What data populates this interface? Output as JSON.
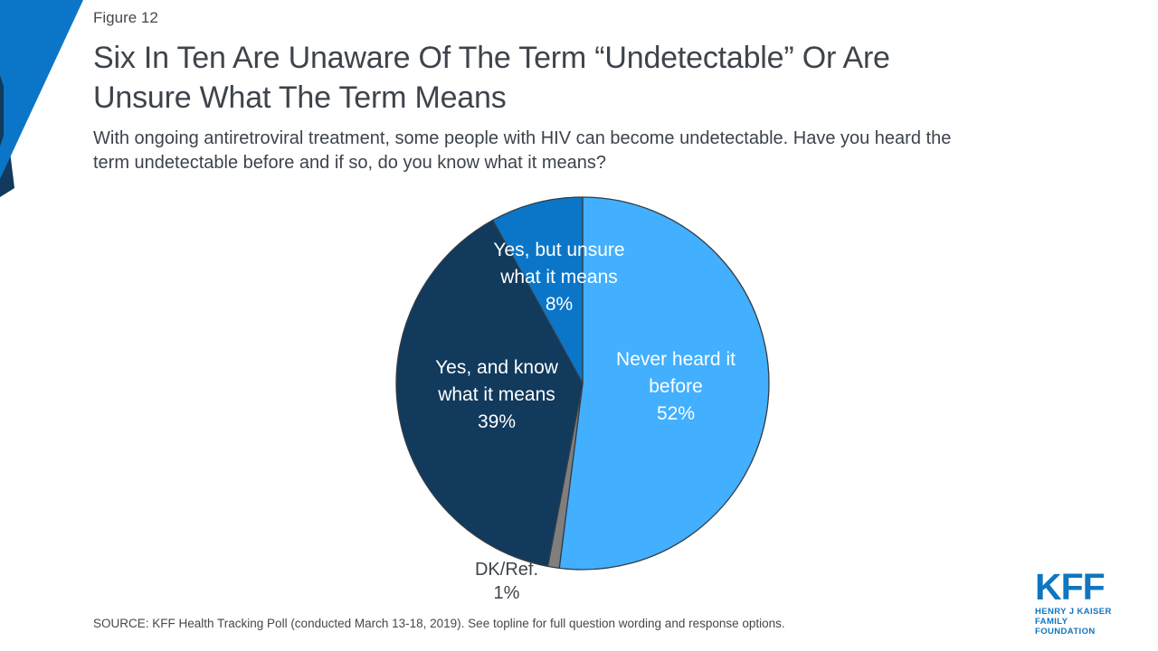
{
  "figure_label": "Figure 12",
  "title_lines": [
    "Six In Ten Are Unaware Of The Term “Undetectable” Or Are",
    "Unsure What The Term Means"
  ],
  "subtitle_lines": [
    "With ongoing antiretroviral treatment, some people with HIV can become undetectable. Have you heard the",
    "term undetectable before and if so, do you know what it means?"
  ],
  "source_text": "SOURCE: KFF Health Tracking Poll (conducted March 13-18, 2019). See topline for full question wording and response options.",
  "logo": {
    "name": "KFF",
    "line1": "HENRY J KAISER",
    "line2": "FAMILY FOUNDATION",
    "color": "#0f76c0"
  },
  "decoration": {
    "corner_triangle_blue": "#0b76c7",
    "corner_triangle_navy": "#113a5c"
  },
  "chart_data": {
    "type": "pie",
    "title": "Have you heard the term undetectable before and if so, do you know what it means?",
    "start_angle_deg": 0,
    "direction": "clockwise",
    "legend_position": "labels-on-slices",
    "slice_border_color": "#333d46",
    "slices": [
      {
        "id": "never-heard",
        "name": "Never heard it before",
        "value": 52,
        "pct_label": "52%",
        "color": "#42afff",
        "lines": [
          "Never heard it",
          "before",
          "52%"
        ]
      },
      {
        "id": "dk-ref",
        "name": "DK/Ref.",
        "value": 1,
        "pct_label": "1%",
        "color": "#7f7f7f",
        "lines": [
          "DK/Ref.",
          "1%"
        ]
      },
      {
        "id": "yes-know",
        "name": "Yes, and know what it means",
        "value": 39,
        "pct_label": "39%",
        "color": "#113a5c",
        "lines": [
          "Yes, and know",
          "what it means",
          "39%"
        ]
      },
      {
        "id": "yes-unsure",
        "name": "Yes, but unsure what it means",
        "value": 8,
        "pct_label": "8%",
        "color": "#0b76c7",
        "lines": [
          "Yes, but unsure",
          "what it means",
          "8%"
        ]
      }
    ]
  }
}
